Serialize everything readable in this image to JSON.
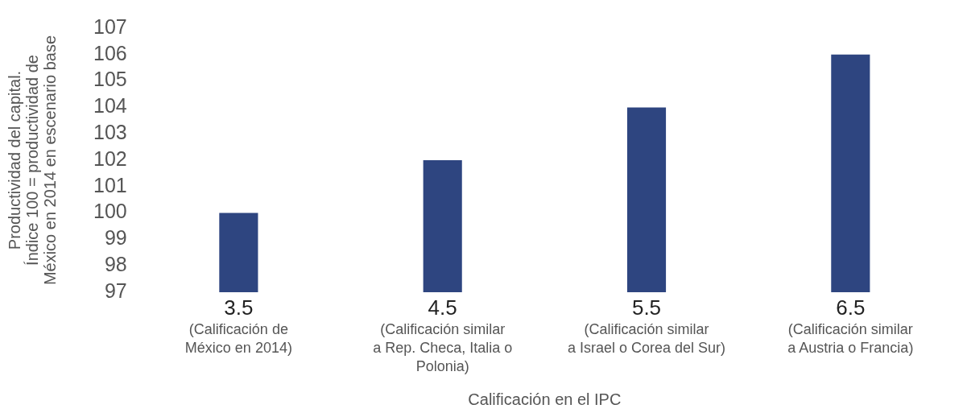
{
  "chart_data": {
    "type": "bar",
    "categories": [
      "3.5\n(Calificación de\nMéxico en 2014)",
      "4.5\n(Calificación similar\na Rep. Checa, Italia o\nPolonia)",
      "5.5\n(Calificación similar\na Israel o Corea del Sur)",
      "6.5\n(Calificación similar\na Austria o Francia)"
    ],
    "values": [
      100,
      102,
      104,
      106
    ],
    "color": "#2e4580",
    "xlabel": "Calificación en el IPC",
    "ylabel": "Productividad del capital.\nÍndice 100 = productividad de\nMéxico en 2014 en escenario base",
    "ylim": [
      97,
      107
    ],
    "yticks": [
      97,
      98,
      99,
      100,
      101,
      102,
      103,
      104,
      105,
      106,
      107
    ],
    "grid": false,
    "legend": false
  }
}
